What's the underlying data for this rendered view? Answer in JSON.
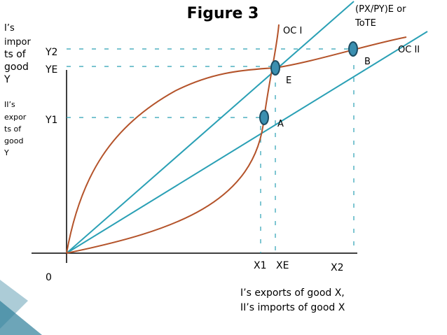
{
  "title": "Figure 3",
  "y_axis_labels": {
    "upper": [
      "I’s",
      "impor",
      "ts of",
      "good",
      "Y"
    ],
    "lower": [
      "II’s",
      "expor",
      "ts of",
      "good",
      "Y"
    ]
  },
  "y_ticks": [
    "Y2",
    "YE",
    "Y1"
  ],
  "origin": "0",
  "x_ticks": [
    "X1",
    "XE",
    "X2"
  ],
  "x_axis_label": [
    "I’s exports of good X,",
    "II’s imports of good X"
  ],
  "curves": {
    "oc1": "OC I",
    "oc2": "OC II"
  },
  "tot_label": [
    "(PX/PY)E or",
    "ToTE"
  ],
  "points": {
    "a": "A",
    "b": "B",
    "e": "E"
  }
}
